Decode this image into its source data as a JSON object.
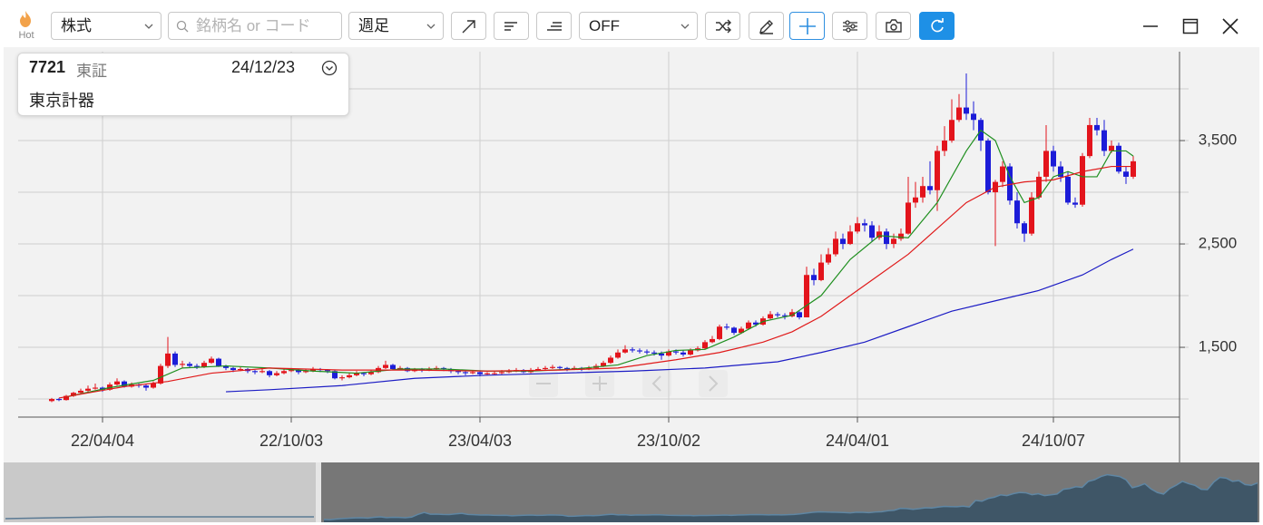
{
  "toolbar": {
    "hot_label": "Hot",
    "market_type": "株式",
    "search_placeholder": "銘柄名 or コード",
    "period": "週足",
    "overlay": "OFF"
  },
  "info": {
    "code": "7721",
    "exchange": "東証",
    "date": "24/12/23",
    "name": "東京計器"
  },
  "chart_data": {
    "type": "candlestick",
    "categories": [
      null,
      null,
      null,
      null,
      null,
      null,
      null,
      "22/04/04",
      null,
      null,
      null,
      null,
      null,
      null,
      null,
      null,
      null,
      null,
      null,
      null,
      null,
      null,
      null,
      null,
      null,
      null,
      null,
      null,
      null,
      null,
      null,
      null,
      null,
      "22/10/03",
      null,
      null,
      null,
      null,
      null,
      null,
      null,
      null,
      null,
      null,
      null,
      null,
      null,
      null,
      null,
      null,
      null,
      null,
      null,
      null,
      null,
      null,
      null,
      null,
      null,
      "23/04/03",
      null,
      null,
      null,
      null,
      null,
      null,
      null,
      null,
      null,
      null,
      null,
      null,
      null,
      null,
      null,
      null,
      null,
      null,
      null,
      null,
      null,
      null,
      null,
      null,
      null,
      "23/10/02",
      null,
      null,
      null,
      null,
      null,
      null,
      null,
      null,
      null,
      null,
      null,
      null,
      null,
      null,
      null,
      null,
      null,
      null,
      null,
      null,
      null,
      null,
      null,
      null,
      null,
      "24/04/01",
      null,
      null,
      null,
      null,
      null,
      null,
      null,
      null,
      null,
      null,
      null,
      null,
      null,
      null,
      null,
      null,
      null,
      null,
      null,
      null,
      null,
      null,
      null,
      null,
      null,
      null,
      "24/10/07",
      null,
      null,
      null,
      null,
      null,
      null,
      null,
      null,
      null,
      null,
      null
    ],
    "ohlc": [
      [
        980,
        1010,
        970,
        1000
      ],
      [
        1000,
        1010,
        980,
        990
      ],
      [
        990,
        1040,
        985,
        1030
      ],
      [
        1030,
        1070,
        1020,
        1060
      ],
      [
        1060,
        1100,
        1050,
        1080
      ],
      [
        1080,
        1130,
        1070,
        1100
      ],
      [
        1100,
        1150,
        1090,
        1110
      ],
      [
        1110,
        1120,
        1070,
        1090
      ],
      [
        1090,
        1160,
        1080,
        1140
      ],
      [
        1140,
        1200,
        1130,
        1170
      ],
      [
        1170,
        1180,
        1110,
        1120
      ],
      [
        1120,
        1160,
        1110,
        1140
      ],
      [
        1140,
        1150,
        1110,
        1130
      ],
      [
        1130,
        1140,
        1080,
        1110
      ],
      [
        1110,
        1170,
        1100,
        1150
      ],
      [
        1150,
        1340,
        1140,
        1320
      ],
      [
        1320,
        1600,
        1300,
        1440
      ],
      [
        1440,
        1460,
        1310,
        1330
      ],
      [
        1330,
        1370,
        1300,
        1340
      ],
      [
        1340,
        1360,
        1300,
        1320
      ],
      [
        1320,
        1340,
        1290,
        1310
      ],
      [
        1310,
        1370,
        1300,
        1350
      ],
      [
        1350,
        1410,
        1340,
        1390
      ],
      [
        1390,
        1400,
        1310,
        1320
      ],
      [
        1320,
        1330,
        1280,
        1300
      ],
      [
        1300,
        1310,
        1260,
        1280
      ],
      [
        1280,
        1310,
        1270,
        1290
      ],
      [
        1290,
        1300,
        1250,
        1270
      ],
      [
        1270,
        1280,
        1240,
        1260
      ],
      [
        1260,
        1290,
        1250,
        1270
      ],
      [
        1270,
        1280,
        1210,
        1230
      ],
      [
        1230,
        1270,
        1220,
        1250
      ],
      [
        1250,
        1290,
        1240,
        1270
      ],
      [
        1270,
        1300,
        1260,
        1280
      ],
      [
        1280,
        1290,
        1240,
        1260
      ],
      [
        1260,
        1290,
        1250,
        1270
      ],
      [
        1270,
        1310,
        1260,
        1290
      ],
      [
        1290,
        1300,
        1260,
        1280
      ],
      [
        1280,
        1290,
        1250,
        1270
      ],
      [
        1270,
        1280,
        1190,
        1200
      ],
      [
        1200,
        1230,
        1180,
        1210
      ],
      [
        1210,
        1250,
        1200,
        1230
      ],
      [
        1230,
        1270,
        1220,
        1250
      ],
      [
        1250,
        1260,
        1220,
        1240
      ],
      [
        1240,
        1280,
        1230,
        1260
      ],
      [
        1260,
        1320,
        1250,
        1300
      ],
      [
        1300,
        1370,
        1290,
        1330
      ],
      [
        1330,
        1340,
        1280,
        1290
      ],
      [
        1290,
        1320,
        1280,
        1300
      ],
      [
        1300,
        1310,
        1260,
        1270
      ],
      [
        1270,
        1300,
        1260,
        1290
      ],
      [
        1290,
        1300,
        1260,
        1280
      ],
      [
        1280,
        1310,
        1270,
        1290
      ],
      [
        1290,
        1320,
        1280,
        1300
      ],
      [
        1300,
        1310,
        1270,
        1290
      ],
      [
        1290,
        1300,
        1250,
        1270
      ],
      [
        1270,
        1280,
        1240,
        1260
      ],
      [
        1260,
        1270,
        1230,
        1250
      ],
      [
        1250,
        1280,
        1240,
        1260
      ],
      [
        1260,
        1270,
        1220,
        1240
      ],
      [
        1240,
        1260,
        1230,
        1250
      ],
      [
        1250,
        1270,
        1235,
        1250
      ],
      [
        1250,
        1280,
        1240,
        1260
      ],
      [
        1260,
        1290,
        1250,
        1270
      ],
      [
        1270,
        1300,
        1260,
        1280
      ],
      [
        1280,
        1290,
        1250,
        1260
      ],
      [
        1260,
        1300,
        1250,
        1280
      ],
      [
        1280,
        1310,
        1270,
        1290
      ],
      [
        1290,
        1320,
        1280,
        1300
      ],
      [
        1300,
        1330,
        1290,
        1310
      ],
      [
        1310,
        1320,
        1280,
        1300
      ],
      [
        1300,
        1310,
        1270,
        1290
      ],
      [
        1290,
        1320,
        1280,
        1300
      ],
      [
        1300,
        1310,
        1270,
        1290
      ],
      [
        1290,
        1320,
        1280,
        1300
      ],
      [
        1300,
        1340,
        1290,
        1320
      ],
      [
        1320,
        1370,
        1310,
        1350
      ],
      [
        1350,
        1420,
        1340,
        1400
      ],
      [
        1400,
        1480,
        1390,
        1450
      ],
      [
        1450,
        1520,
        1440,
        1480
      ],
      [
        1480,
        1500,
        1450,
        1470
      ],
      [
        1470,
        1490,
        1440,
        1460
      ],
      [
        1460,
        1480,
        1430,
        1450
      ],
      [
        1450,
        1470,
        1420,
        1440
      ],
      [
        1440,
        1460,
        1380,
        1420
      ],
      [
        1420,
        1480,
        1410,
        1460
      ],
      [
        1460,
        1480,
        1430,
        1450
      ],
      [
        1450,
        1470,
        1410,
        1430
      ],
      [
        1430,
        1490,
        1420,
        1470
      ],
      [
        1470,
        1510,
        1460,
        1490
      ],
      [
        1490,
        1570,
        1480,
        1550
      ],
      [
        1550,
        1610,
        1540,
        1580
      ],
      [
        1580,
        1720,
        1570,
        1700
      ],
      [
        1700,
        1730,
        1670,
        1690
      ],
      [
        1690,
        1700,
        1620,
        1640
      ],
      [
        1640,
        1700,
        1630,
        1680
      ],
      [
        1680,
        1760,
        1670,
        1740
      ],
      [
        1740,
        1760,
        1700,
        1720
      ],
      [
        1720,
        1800,
        1710,
        1780
      ],
      [
        1780,
        1850,
        1770,
        1820
      ],
      [
        1820,
        1840,
        1790,
        1810
      ],
      [
        1810,
        1830,
        1770,
        1800
      ],
      [
        1800,
        1870,
        1790,
        1840
      ],
      [
        1840,
        1850,
        1770,
        1790
      ],
      [
        1790,
        2280,
        1790,
        2200
      ],
      [
        2200,
        2260,
        2100,
        2150
      ],
      [
        2150,
        2400,
        2140,
        2320
      ],
      [
        2320,
        2460,
        2300,
        2400
      ],
      [
        2400,
        2620,
        2380,
        2550
      ],
      [
        2550,
        2600,
        2450,
        2500
      ],
      [
        2500,
        2680,
        2490,
        2620
      ],
      [
        2620,
        2760,
        2600,
        2700
      ],
      [
        2700,
        2740,
        2620,
        2680
      ],
      [
        2680,
        2720,
        2520,
        2560
      ],
      [
        2560,
        2680,
        2540,
        2620
      ],
      [
        2620,
        2650,
        2450,
        2500
      ],
      [
        2500,
        2600,
        2460,
        2550
      ],
      [
        2550,
        2650,
        2530,
        2600
      ],
      [
        2600,
        3150,
        2590,
        2900
      ],
      [
        2900,
        3100,
        2850,
        2950
      ],
      [
        2950,
        3150,
        2900,
        3060
      ],
      [
        3060,
        3300,
        2980,
        3020
      ],
      [
        3020,
        3450,
        2820,
        3400
      ],
      [
        3400,
        3640,
        3350,
        3500
      ],
      [
        3500,
        3900,
        3480,
        3700
      ],
      [
        3700,
        3950,
        3680,
        3820
      ],
      [
        3820,
        4150,
        3700,
        3760
      ],
      [
        3760,
        3880,
        3600,
        3700
      ],
      [
        3700,
        3720,
        3400,
        3500
      ],
      [
        3500,
        3520,
        2980,
        3000
      ],
      [
        3000,
        3120,
        2480,
        3100
      ],
      [
        3100,
        3300,
        3050,
        3250
      ],
      [
        3250,
        3280,
        2880,
        2920
      ],
      [
        2920,
        3000,
        2650,
        2700
      ],
      [
        2700,
        2720,
        2520,
        2600
      ],
      [
        2600,
        3000,
        2580,
        2950
      ],
      [
        2950,
        3200,
        2930,
        3150
      ],
      [
        3150,
        3650,
        3100,
        3400
      ],
      [
        3400,
        3450,
        3200,
        3250
      ],
      [
        3250,
        3300,
        3100,
        3150
      ],
      [
        3150,
        3200,
        2880,
        2900
      ],
      [
        2900,
        2950,
        2850,
        2880
      ],
      [
        2880,
        3380,
        2860,
        3350
      ],
      [
        3350,
        3720,
        3330,
        3650
      ],
      [
        3650,
        3720,
        3550,
        3600
      ],
      [
        3600,
        3700,
        3350,
        3400
      ],
      [
        3400,
        3500,
        3380,
        3450
      ],
      [
        3450,
        3480,
        3180,
        3200
      ],
      [
        3200,
        3250,
        3080,
        3150
      ],
      [
        3150,
        3350,
        3130,
        3300
      ]
    ],
    "up_color": "#e3141c",
    "down_color": "#1c1cd8",
    "moving_averages": [
      {
        "color": "#1f8f1f",
        "x": [
          2,
          8,
          14,
          18,
          24,
          30,
          36,
          42,
          48,
          54,
          60,
          66,
          72,
          78,
          82,
          86,
          90,
          94,
          98,
          102,
          106,
          110,
          114,
          118,
          122,
          126,
          128,
          130,
          132,
          134,
          136,
          138,
          140,
          142,
          144,
          146,
          148,
          149
        ],
        "values": [
          1020,
          1110,
          1180,
          1300,
          1320,
          1300,
          1270,
          1250,
          1290,
          1290,
          1270,
          1270,
          1290,
          1330,
          1420,
          1470,
          1480,
          1600,
          1750,
          1810,
          2000,
          2350,
          2580,
          2560,
          2900,
          3400,
          3600,
          3500,
          3150,
          2900,
          2950,
          3150,
          3200,
          3150,
          3150,
          3400,
          3400,
          3350
        ]
      },
      {
        "color": "#e01a1a",
        "x": [
          1,
          10,
          16,
          22,
          30,
          40,
          50,
          60,
          70,
          78,
          86,
          92,
          98,
          102,
          106,
          110,
          114,
          118,
          122,
          126,
          130,
          134,
          138,
          142,
          146,
          149
        ],
        "values": [
          1010,
          1120,
          1170,
          1250,
          1300,
          1280,
          1280,
          1270,
          1280,
          1300,
          1380,
          1450,
          1550,
          1650,
          1800,
          2000,
          2200,
          2400,
          2650,
          2900,
          3050,
          3100,
          3120,
          3200,
          3250,
          3250
        ]
      },
      {
        "color": "#1c1cc4",
        "x": [
          24,
          30,
          40,
          50,
          60,
          70,
          80,
          90,
          100,
          106,
          112,
          118,
          124,
          130,
          136,
          142,
          146,
          149
        ],
        "values": [
          1070,
          1090,
          1130,
          1200,
          1230,
          1250,
          1270,
          1300,
          1360,
          1450,
          1550,
          1700,
          1850,
          1950,
          2050,
          2200,
          2350,
          2450
        ]
      }
    ],
    "ylim": [
      825,
      4360
    ],
    "yticks": [
      {
        "value": 1500,
        "label": "1,500"
      },
      {
        "value": 2500,
        "label": "2,500"
      },
      {
        "value": 3500,
        "label": "3,500"
      }
    ],
    "ygrid": [
      1000,
      2000,
      3000,
      4000
    ],
    "grid": true
  }
}
